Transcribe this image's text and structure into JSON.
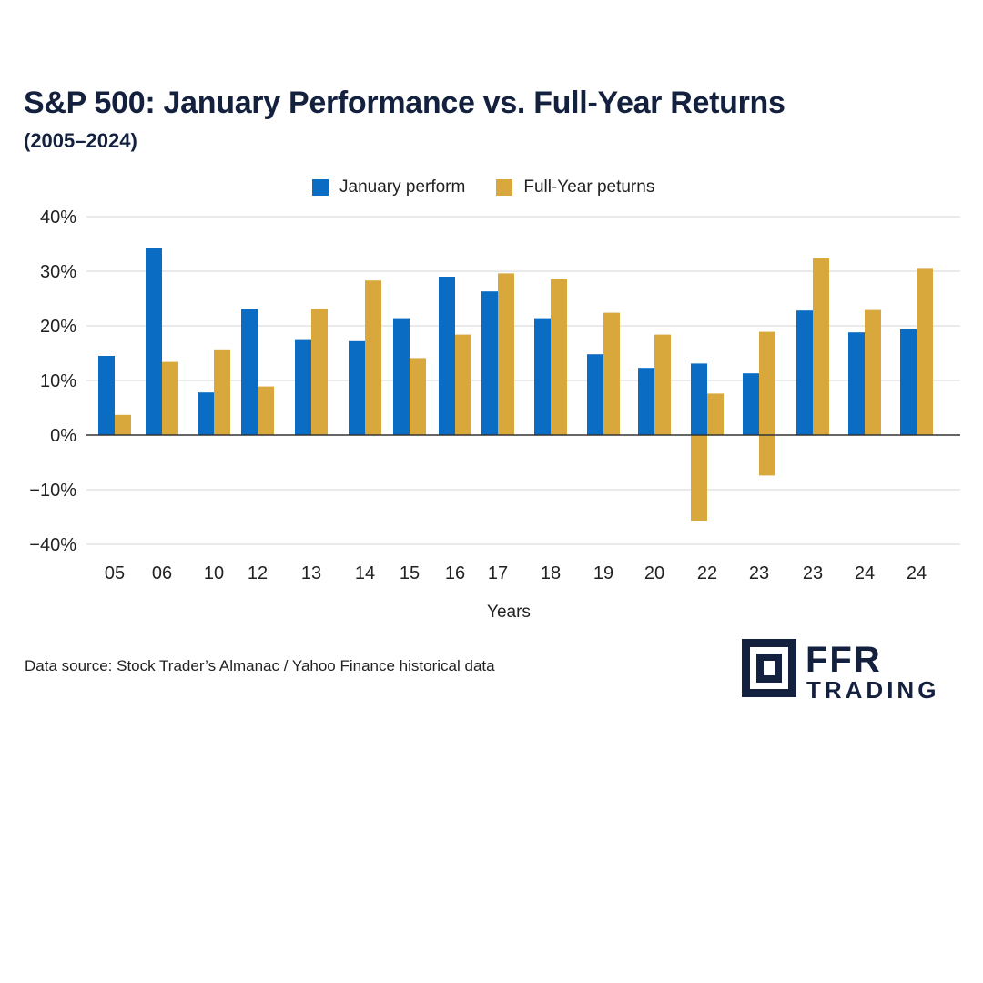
{
  "chart_data": {
    "type": "bar",
    "title": "S&P 500: January Performance vs. Full-Year Returns",
    "subtitle": "(2005–2024)",
    "xlabel": "Years",
    "ylabel": "",
    "categories": [
      "05",
      "06",
      "10",
      "12",
      "13",
      "14",
      "15",
      "16",
      "17",
      "18",
      "19",
      "20",
      "22",
      "23",
      "23",
      "24",
      "24"
    ],
    "y_ticks": [
      {
        "value": 40,
        "label": "40%"
      },
      {
        "value": 30,
        "label": "30%"
      },
      {
        "value": 20,
        "label": "20%"
      },
      {
        "value": 10,
        "label": "10%"
      },
      {
        "value": 0,
        "label": "0%"
      },
      {
        "value": -10,
        "label": "−10%"
      },
      {
        "value": -40,
        "label": "−40%"
      }
    ],
    "ylim": [
      -40,
      40
    ],
    "grid": true,
    "legend_position": "top-center",
    "series": [
      {
        "name": "January perform",
        "color": "#0a6cc2",
        "values": [
          14.5,
          34.3,
          7.8,
          23.1,
          17.4,
          17.2,
          21.4,
          29.0,
          26.3,
          21.4,
          14.8,
          12.3,
          13.1,
          11.3,
          22.8,
          18.8,
          19.4
        ]
      },
      {
        "name": "Full-Year peturns",
        "color": "#d8a83c",
        "values": [
          3.7,
          13.4,
          15.7,
          8.9,
          23.1,
          28.3,
          14.1,
          18.4,
          29.6,
          28.6,
          22.4,
          18.4,
          7.6,
          18.9,
          32.4,
          22.9,
          30.6
        ]
      },
      {
        "color": "#d8a83c",
        "values": [
          null,
          null,
          null,
          null,
          null,
          null,
          null,
          null,
          null,
          null,
          null,
          null,
          -27,
          -7.4,
          null,
          null,
          null
        ]
      }
    ]
  },
  "source": "Data source: Stock Trader’s Almanac / Yahoo Finance historical data",
  "logo": {
    "line1": "FFR",
    "line2": "TRADING",
    "color": "#13213f"
  }
}
